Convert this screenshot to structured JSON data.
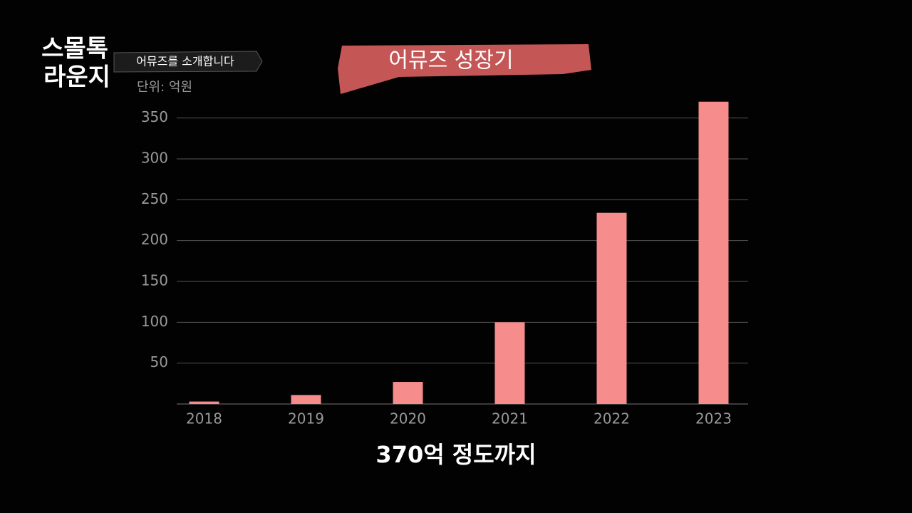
{
  "logo": [
    "스몰톡",
    "라운지"
  ],
  "tagline": "어뮤즈를 소개합니다",
  "chart_data": {
    "type": "bar",
    "title": "어뮤즈 성장기",
    "subtitle": "단위: 억원",
    "annotation": "370억 정도까지",
    "categories": [
      "2018",
      "2019",
      "2020",
      "2021",
      "2022",
      "2023"
    ],
    "values": [
      3,
      11,
      27,
      100,
      234,
      370
    ],
    "color": "#f78c8c",
    "ylim": [
      0,
      375
    ],
    "yticks": [
      50,
      100,
      150,
      200,
      250,
      300,
      350
    ],
    "grid": true
  }
}
